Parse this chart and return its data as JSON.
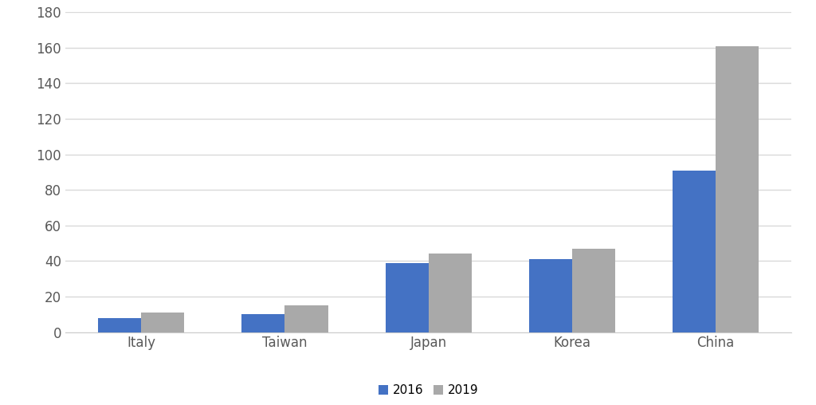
{
  "categories": [
    "Italy",
    "Taiwan",
    "Japan",
    "Korea",
    "China"
  ],
  "values_2016": [
    8,
    10,
    39,
    41,
    91
  ],
  "values_2019": [
    11,
    15,
    44,
    47,
    161
  ],
  "color_2016": "#4472C4",
  "color_2019": "#A9A9A9",
  "legend_labels": [
    "2016",
    "2019"
  ],
  "ylim": [
    0,
    180
  ],
  "yticks": [
    0,
    20,
    40,
    60,
    80,
    100,
    120,
    140,
    160,
    180
  ],
  "background_color": "#FFFFFF",
  "bar_width": 0.3,
  "grid_color": "#D9D9D9",
  "tick_fontsize": 12,
  "legend_fontsize": 11,
  "spine_color": "#CCCCCC"
}
